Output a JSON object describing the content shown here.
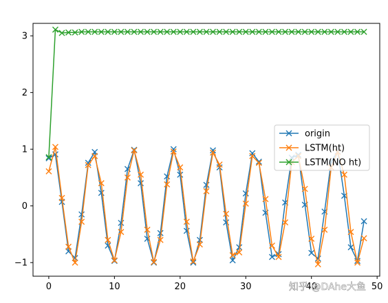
{
  "chart_data": {
    "type": "line",
    "title": "",
    "xlabel": "",
    "ylabel": "",
    "xlim": [
      -2.4,
      50.4
    ],
    "ylim": [
      -1.24,
      3.22
    ],
    "x_ticks": [
      0,
      10,
      20,
      30,
      40,
      50
    ],
    "y_ticks": [
      -1,
      0,
      1,
      2,
      3
    ],
    "grid": false,
    "legend_position": "center-right",
    "marker": "x",
    "series": [
      {
        "name": "origin",
        "color": "#1f77b4",
        "x": [
          0,
          1,
          2,
          3,
          4,
          5,
          6,
          7,
          8,
          9,
          10,
          11,
          12,
          13,
          14,
          15,
          16,
          17,
          18,
          19,
          20,
          21,
          22,
          23,
          24,
          25,
          26,
          27,
          28,
          29,
          30,
          31,
          32,
          33,
          34,
          35,
          36,
          37,
          38,
          39,
          40,
          41,
          42,
          43,
          44,
          45,
          46,
          47,
          48
        ],
        "y": [
          0.84,
          0.91,
          0.07,
          -0.8,
          -0.92,
          -0.15,
          0.76,
          0.95,
          0.23,
          -0.7,
          -0.97,
          -0.3,
          0.65,
          0.99,
          0.4,
          -0.58,
          -1.0,
          -0.48,
          0.52,
          1.0,
          0.55,
          -0.44,
          -1.0,
          -0.6,
          0.37,
          0.98,
          0.68,
          -0.29,
          -0.96,
          -0.73,
          0.22,
          0.93,
          0.78,
          -0.12,
          -0.9,
          -0.85,
          0.06,
          0.85,
          0.9,
          0.02,
          -0.83,
          -0.93,
          -0.1,
          0.78,
          0.96,
          0.18,
          -0.73,
          -0.97,
          -0.27
        ]
      },
      {
        "name": "LSTM(ht)",
        "color": "#ff7f0e",
        "x": [
          0,
          1,
          2,
          3,
          4,
          5,
          6,
          7,
          8,
          9,
          10,
          11,
          12,
          13,
          14,
          15,
          16,
          17,
          18,
          19,
          20,
          21,
          22,
          23,
          24,
          25,
          26,
          27,
          28,
          29,
          30,
          31,
          32,
          33,
          34,
          35,
          36,
          37,
          38,
          39,
          40,
          41,
          42,
          43,
          44,
          45,
          46,
          47,
          48
        ],
        "y": [
          0.61,
          1.04,
          0.14,
          -0.72,
          -1.0,
          -0.28,
          0.72,
          0.88,
          0.4,
          -0.6,
          -0.96,
          -0.46,
          0.5,
          0.98,
          0.55,
          -0.42,
          -0.99,
          -0.6,
          0.38,
          0.96,
          0.68,
          -0.28,
          -0.98,
          -0.68,
          0.26,
          0.94,
          0.73,
          -0.14,
          -0.87,
          -0.82,
          0.04,
          0.88,
          0.76,
          0.12,
          -0.7,
          -0.9,
          -0.29,
          0.77,
          0.88,
          0.3,
          -0.58,
          -1.03,
          -0.42,
          0.68,
          0.95,
          0.55,
          -0.46,
          -1.0,
          -0.57
        ]
      },
      {
        "name": "LSTM(NO ht)",
        "color": "#2ca02c",
        "x": [
          0,
          1,
          2,
          3,
          4,
          5,
          6,
          7,
          8,
          9,
          10,
          11,
          12,
          13,
          14,
          15,
          16,
          17,
          18,
          19,
          20,
          21,
          22,
          23,
          24,
          25,
          26,
          27,
          28,
          29,
          30,
          31,
          32,
          33,
          34,
          35,
          36,
          37,
          38,
          39,
          40,
          41,
          42,
          43,
          44,
          45,
          46,
          47,
          48
        ],
        "y": [
          0.86,
          3.11,
          3.05,
          3.06,
          3.06,
          3.07,
          3.07,
          3.07,
          3.07,
          3.07,
          3.07,
          3.07,
          3.07,
          3.07,
          3.07,
          3.07,
          3.07,
          3.07,
          3.07,
          3.07,
          3.07,
          3.07,
          3.07,
          3.07,
          3.07,
          3.07,
          3.07,
          3.07,
          3.07,
          3.07,
          3.07,
          3.07,
          3.07,
          3.07,
          3.07,
          3.07,
          3.07,
          3.07,
          3.07,
          3.07,
          3.07,
          3.07,
          3.07,
          3.07,
          3.07,
          3.07,
          3.07,
          3.07,
          3.07
        ]
      }
    ]
  },
  "watermark": {
    "text": "知乎 @DAhe大鱼"
  }
}
